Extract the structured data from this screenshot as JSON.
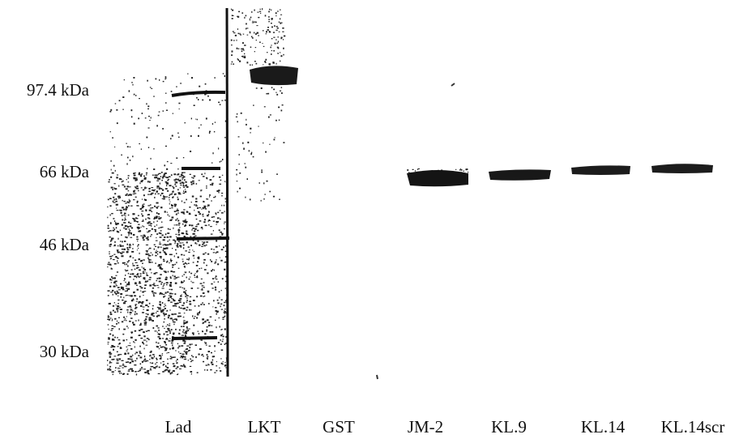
{
  "markers": [
    "97.4 kDa",
    "66 kDa",
    "46 kDa",
    "30 kDa"
  ],
  "lanes": [
    "Lad",
    "LKT",
    "GST",
    "JM-2",
    "KL.9",
    "KL.14",
    "KL.14scr"
  ]
}
